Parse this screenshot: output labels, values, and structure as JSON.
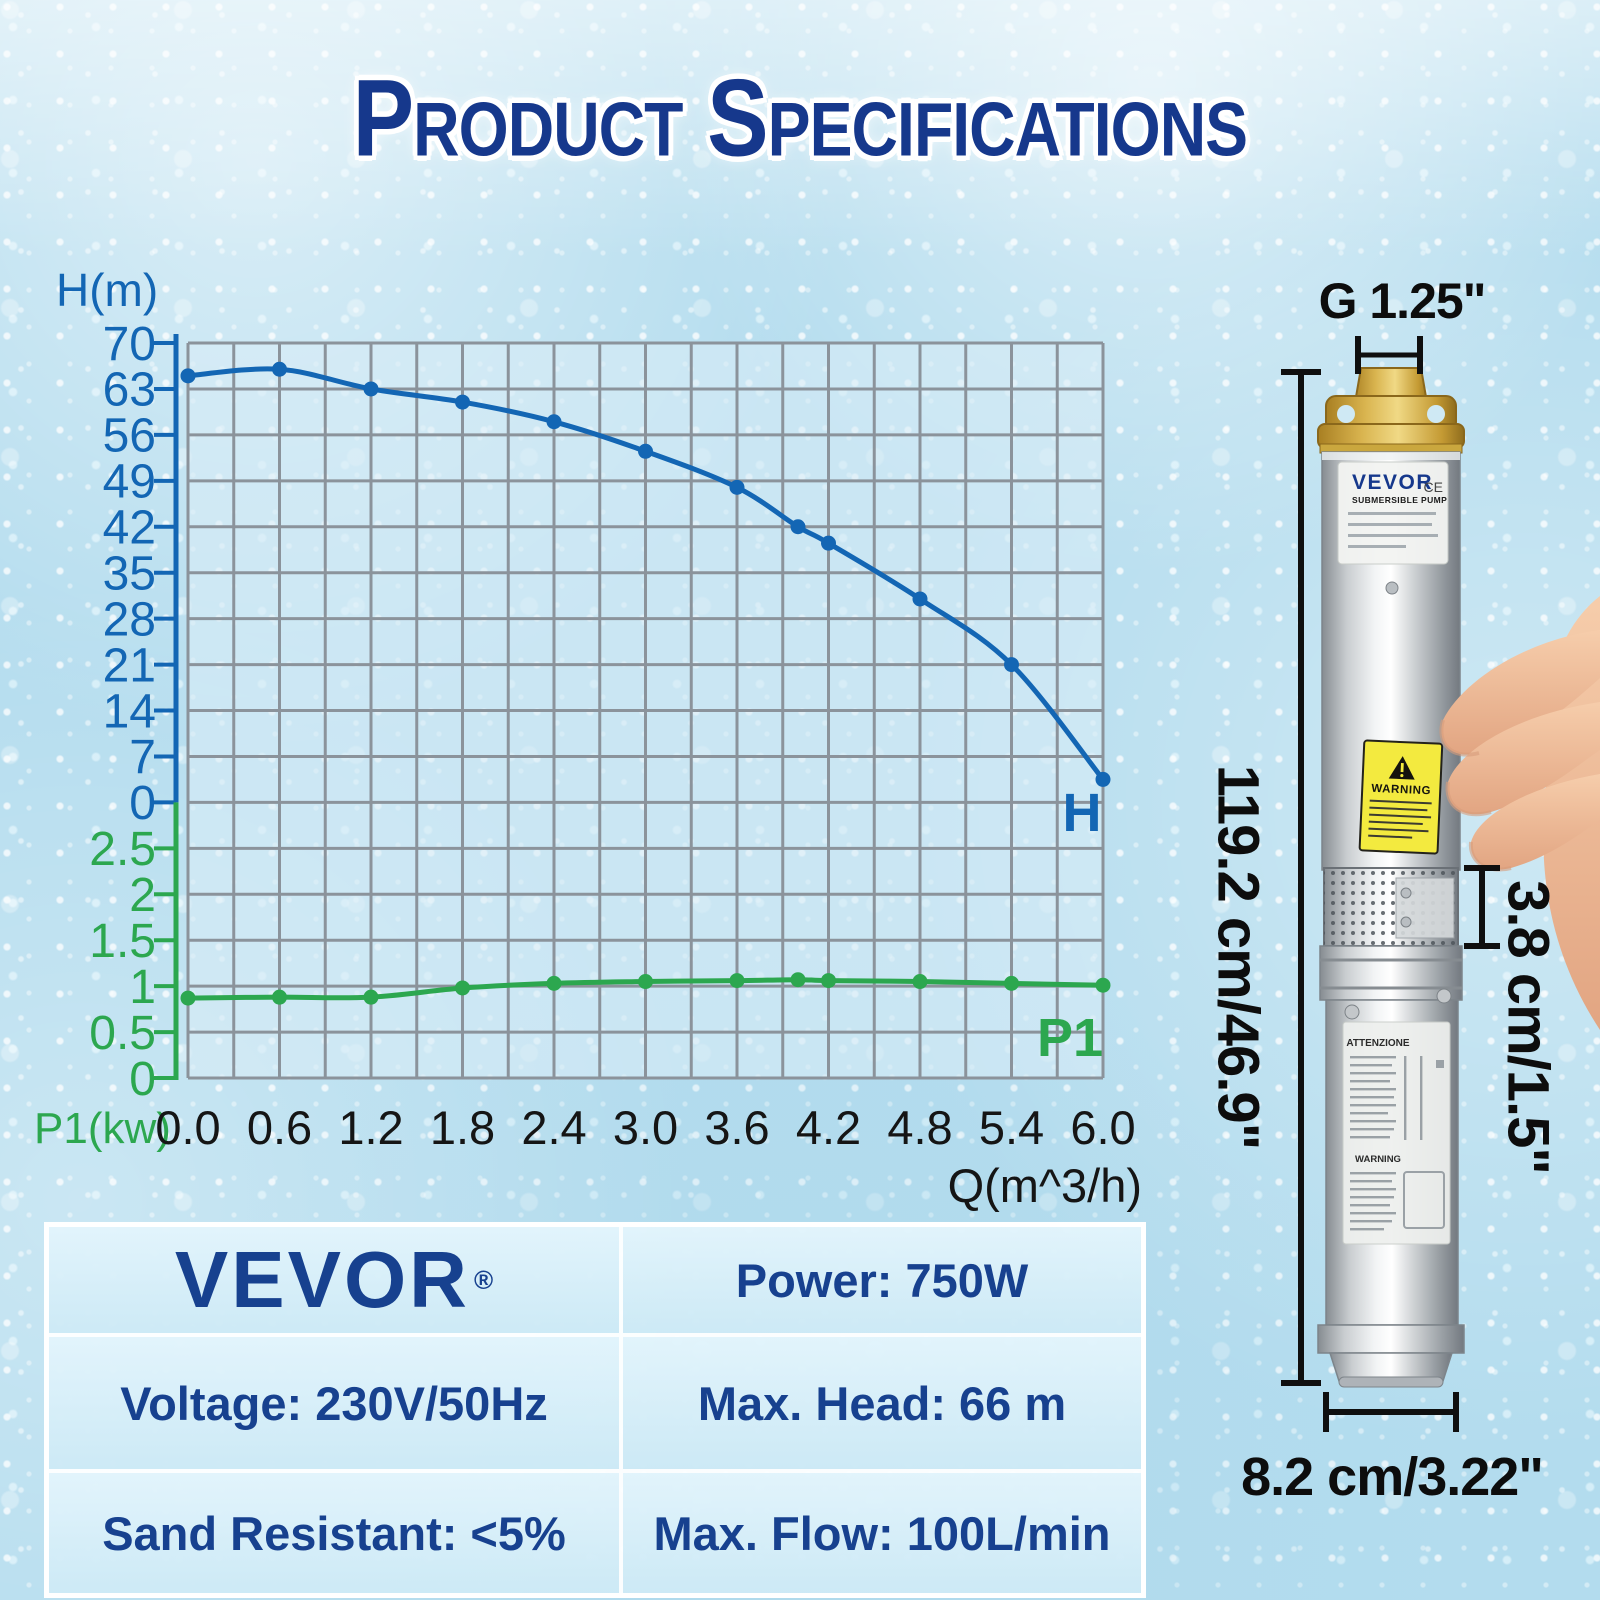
{
  "title": "Product Specifications",
  "colors": {
    "navy": "#16388c",
    "curve_blue": "#1366b4",
    "curve_green": "#2ca74f",
    "grid_gray": "#8b939b",
    "tick_black": "#151515"
  },
  "chart_data": {
    "type": "line",
    "x": [
      0.0,
      0.6,
      1.2,
      1.8,
      2.4,
      3.0,
      3.6,
      4.0,
      4.2,
      4.8,
      5.4,
      6.0
    ],
    "series": [
      {
        "name": "H",
        "scale": "H",
        "color": "#1366b4",
        "values": [
          65,
          66,
          63,
          61,
          58,
          53.5,
          48,
          42,
          39.5,
          31,
          21,
          3.5
        ]
      },
      {
        "name": "P1",
        "scale": "P1",
        "color": "#2ca74f",
        "values": [
          0.87,
          0.88,
          0.88,
          0.98,
          1.03,
          1.05,
          1.06,
          1.07,
          1.06,
          1.05,
          1.03,
          1.01
        ]
      }
    ],
    "y1label": "H(m)",
    "y2label": "P1(kw)",
    "xlabel": "Q(m^3/h)",
    "h_ticks": [
      "70",
      "63",
      "56",
      "49",
      "42",
      "35",
      "28",
      "21",
      "14",
      "7",
      "0"
    ],
    "p1_ticks": [
      "2.5",
      "2",
      "1.5",
      "1",
      "0.5",
      "0"
    ],
    "x_ticks": [
      "0.0",
      "0.6",
      "1.2",
      "1.8",
      "2.4",
      "3.0",
      "3.6",
      "4.2",
      "4.8",
      "5.4",
      "6.0"
    ],
    "h_range": [
      0,
      70
    ],
    "p1_range": [
      0,
      3.0
    ],
    "x_range": [
      0,
      6
    ],
    "grid": true,
    "legend_position": "line-end-labels"
  },
  "dimensions": {
    "thread": "G 1.25\"",
    "height": "119.2 cm/46.9\"",
    "strainer_height": "3.8 cm/1.5\"",
    "diameter": "8.2 cm/3.22\""
  },
  "pump": {
    "brand": "VEVOR",
    "product": "SUBMERSIBLE PUMP",
    "ce": "CE",
    "warning_label": "WARNING",
    "attenzione_label": "ATTENZIONE",
    "warning2_label": "WARNING"
  },
  "specs": {
    "brand": "VEVOR",
    "registered": "®",
    "power": "Power: 750W",
    "voltage": "Voltage: 230V/50Hz",
    "max_head": "Max. Head: 66 m",
    "sand": "Sand Resistant: <5%",
    "max_flow": "Max. Flow: 100L/min"
  }
}
